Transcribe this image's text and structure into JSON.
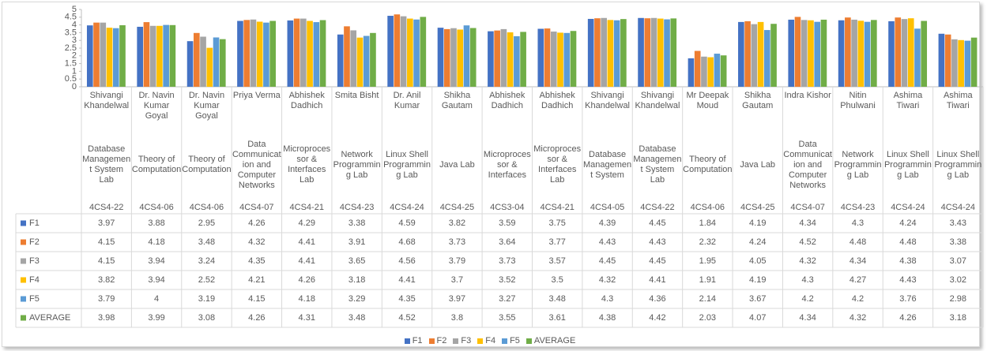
{
  "chart_data": {
    "type": "bar",
    "categories": [
      [
        "Shivangi Khandelwal",
        "Database Management System Lab",
        "4CS4-22"
      ],
      [
        "Dr. Navin Kumar Goyal",
        "Theory of Computation",
        "4CS4-06"
      ],
      [
        "Dr. Navin Kumar Goyal",
        "Theory of Computation",
        "4CS4-06"
      ],
      [
        "Priya Verma",
        "Data Communication and Computer Networks",
        "4CS4-07"
      ],
      [
        "Abhishek Dadhich",
        "Microprocessor & Interfaces Lab",
        "4CS4-21"
      ],
      [
        "Smita Bisht",
        "Network Programming Lab",
        "4CS4-23"
      ],
      [
        "Dr. Anil Kumar",
        "Linux Shell Programming Lab",
        "4CS4-24"
      ],
      [
        "Shikha Gautam",
        "Java Lab",
        "4CS4-25"
      ],
      [
        "Abhishek Dadhich",
        "Microprocessor & Interfaces",
        "4CS3-04"
      ],
      [
        "Abhishek Dadhich",
        "Microprocessor & Interfaces Lab",
        "4CS4-21"
      ],
      [
        "Shivangi Khandelwal",
        "Database Management System",
        "4CS4-05"
      ],
      [
        "Shivangi Khandelwal",
        "Database Management System Lab",
        "4CS4-22"
      ],
      [
        "Mr Deepak Moud",
        "Theory of Computation",
        "4CS4-06"
      ],
      [
        "Shikha Gautam",
        "Java Lab",
        "4CS4-25"
      ],
      [
        "Indra Kishor",
        "Data Communication and Computer Networks",
        "4CS4-07"
      ],
      [
        "Nitin Phulwani",
        "Network Programming Lab",
        "4CS4-23"
      ],
      [
        "Ashima Tiwari",
        "Linux Shell Programming Lab",
        "4CS4-24"
      ],
      [
        "Ashima Tiwari",
        "Linux Shell Programming Lab",
        "4CS4-24"
      ]
    ],
    "series": [
      {
        "name": "F1",
        "color": "#4472c4",
        "values": [
          3.97,
          3.88,
          2.95,
          4.26,
          4.29,
          3.38,
          4.59,
          3.82,
          3.59,
          3.75,
          4.39,
          4.45,
          1.84,
          4.19,
          4.34,
          4.3,
          4.24,
          3.43
        ]
      },
      {
        "name": "F2",
        "color": "#ed7d31",
        "values": [
          4.15,
          4.18,
          3.48,
          4.32,
          4.41,
          3.91,
          4.68,
          3.73,
          3.64,
          3.77,
          4.43,
          4.43,
          2.32,
          4.24,
          4.52,
          4.48,
          4.48,
          3.38
        ]
      },
      {
        "name": "F3",
        "color": "#a5a5a5",
        "values": [
          4.15,
          3.94,
          3.24,
          4.35,
          4.41,
          3.65,
          4.56,
          3.79,
          3.73,
          3.57,
          4.45,
          4.45,
          1.95,
          4.05,
          4.32,
          4.34,
          4.38,
          3.07
        ]
      },
      {
        "name": "F4",
        "color": "#ffc000",
        "values": [
          3.82,
          3.94,
          2.52,
          4.21,
          4.26,
          3.18,
          4.41,
          3.7,
          3.52,
          3.5,
          4.32,
          4.41,
          1.91,
          4.19,
          4.3,
          4.27,
          4.43,
          3.02
        ]
      },
      {
        "name": "F5",
        "color": "#5b9bd5",
        "values": [
          3.79,
          4,
          3.19,
          4.15,
          4.18,
          3.29,
          4.35,
          3.97,
          3.27,
          3.48,
          4.3,
          4.36,
          2.14,
          3.67,
          4.2,
          4.2,
          3.76,
          2.98
        ]
      },
      {
        "name": "AVERAGE",
        "color": "#70ad47",
        "values": [
          3.98,
          3.99,
          3.08,
          4.26,
          4.31,
          3.48,
          4.52,
          3.8,
          3.55,
          3.61,
          4.38,
          4.42,
          2.03,
          4.07,
          4.34,
          4.32,
          4.26,
          3.18
        ]
      }
    ],
    "ylim": [
      0,
      5
    ],
    "yticks": [
      0,
      0.5,
      1,
      1.5,
      2,
      2.5,
      3,
      3.5,
      4,
      4.5,
      5
    ],
    "grid": false
  }
}
